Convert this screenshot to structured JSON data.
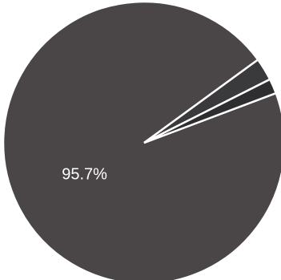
{
  "chart_data": {
    "type": "pie",
    "slices": [
      {
        "label": "95.7%",
        "value": 95.7,
        "color": "#4a4647",
        "labeled": true
      },
      {
        "label": "",
        "value": 2.6,
        "color": "#3a3a3c",
        "labeled": false
      },
      {
        "label": "",
        "value": 1.7,
        "color": "#2e2e30",
        "labeled": false
      }
    ],
    "edge_color": "#ffffff",
    "start_angle_deg": -20.6,
    "direction": "clockwise",
    "legend": "none"
  }
}
